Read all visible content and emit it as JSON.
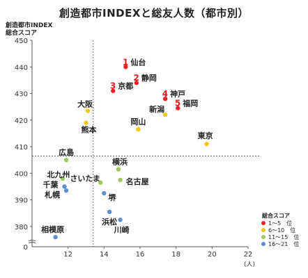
{
  "chart_data": {
    "type": "scatter",
    "title": "創造都市INDEXと総友人数（都市別）",
    "ylabel_lines": [
      "創造都市INDEX",
      "総合スコア"
    ],
    "xunit": "(人)",
    "xlim": [
      10,
      22
    ],
    "ylim": [
      375,
      450
    ],
    "xticks": [
      "12",
      "14",
      "16",
      "18",
      "20",
      "22"
    ],
    "yticks": [
      "380",
      "390",
      "400",
      "410",
      "420",
      "430",
      "440",
      "450"
    ],
    "y_break_label": "0",
    "reference_lines": {
      "x": 13.4,
      "y": 406.5
    },
    "legend": {
      "title": "総合スコア",
      "position": "bottom-right",
      "items": [
        {
          "label": "1〜5　位",
          "color": "#ee2222"
        },
        {
          "label": "6〜10　位",
          "color": "#f5c518"
        },
        {
          "label": "11〜15　位",
          "color": "#9ccb5c"
        },
        {
          "label": "16〜21　位",
          "color": "#5b8fd0"
        }
      ]
    },
    "points": [
      {
        "name": "仙台",
        "rank": "1",
        "group": 0,
        "x": 15.2,
        "y": 440
      },
      {
        "name": "静岡",
        "rank": "2",
        "group": 0,
        "x": 15.8,
        "y": 434
      },
      {
        "name": "京都",
        "rank": "3",
        "group": 0,
        "x": 14.5,
        "y": 431
      },
      {
        "name": "神戸",
        "rank": "4",
        "group": 0,
        "x": 17.4,
        "y": 428
      },
      {
        "name": "福岡",
        "rank": "5",
        "group": 0,
        "x": 18.1,
        "y": 424.5
      },
      {
        "name": "大阪",
        "rank": "",
        "group": 1,
        "x": 13.1,
        "y": 423.5
      },
      {
        "name": "新潟",
        "rank": "",
        "group": 1,
        "x": 17.4,
        "y": 422
      },
      {
        "name": "熊本",
        "rank": "",
        "group": 1,
        "x": 13.0,
        "y": 419
      },
      {
        "name": "岡山",
        "rank": "",
        "group": 1,
        "x": 15.9,
        "y": 416.5
      },
      {
        "name": "東京",
        "rank": "",
        "group": 1,
        "x": 19.7,
        "y": 411
      },
      {
        "name": "広島",
        "rank": "",
        "group": 2,
        "x": 11.9,
        "y": 405
      },
      {
        "name": "横浜",
        "rank": "",
        "group": 2,
        "x": 14.8,
        "y": 401.5
      },
      {
        "name": "北九州",
        "rank": "",
        "group": 2,
        "x": 11.7,
        "y": 398
      },
      {
        "name": "名古屋",
        "rank": "",
        "group": 2,
        "x": 14.9,
        "y": 397.5
      },
      {
        "name": "さいたま",
        "rank": "",
        "group": 2,
        "x": 13.8,
        "y": 396.5
      },
      {
        "name": "千葉",
        "rank": "",
        "group": 3,
        "x": 11.8,
        "y": 395
      },
      {
        "name": "札幌",
        "rank": "",
        "group": 3,
        "x": 11.9,
        "y": 393.5
      },
      {
        "name": "堺",
        "rank": "",
        "group": 3,
        "x": 14.0,
        "y": 392.5
      },
      {
        "name": "浜松",
        "rank": "",
        "group": 3,
        "x": 14.3,
        "y": 385.5
      },
      {
        "name": "川崎",
        "rank": "",
        "group": 3,
        "x": 14.9,
        "y": 382.5
      },
      {
        "name": "相模原",
        "rank": "",
        "group": 3,
        "x": 11.3,
        "y": 376
      }
    ]
  }
}
